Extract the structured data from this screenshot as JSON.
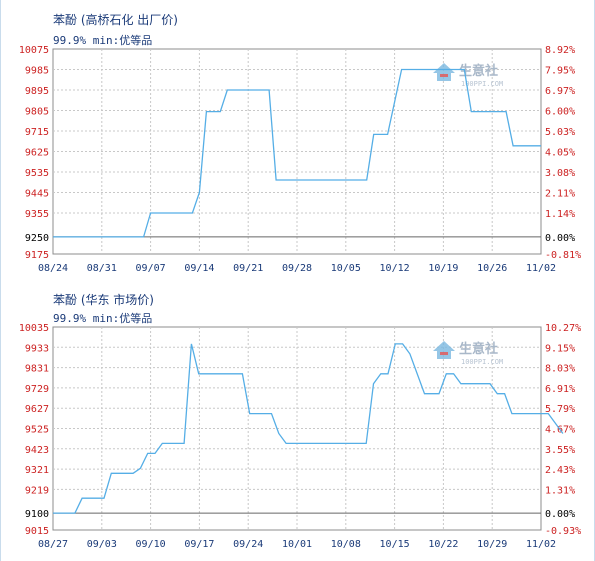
{
  "colors": {
    "line": "#55aee6",
    "grid": "#c8c8c8",
    "axis": "#8c8c8c",
    "left_label": "#cc2222",
    "right_label": "#cc2222",
    "zero_label": "#000000",
    "date_label": "#1a3a78",
    "title": "#1a3a78"
  },
  "watermark": {
    "text": "生意社",
    "subtext": "100PPI.COM",
    "icon": "house-logo-icon"
  },
  "chart_data": [
    {
      "type": "line",
      "title": "苯酚 (高桥石化 出厂价)",
      "subtitle": "99.9% min:优等品",
      "x_ticks": [
        "08/24",
        "08/31",
        "09/07",
        "09/14",
        "09/21",
        "09/28",
        "10/05",
        "10/12",
        "10/19",
        "10/26",
        "11/02"
      ],
      "x_range": [
        0,
        70
      ],
      "y_ticks": [
        9175,
        9250,
        9355,
        9445,
        9535,
        9625,
        9715,
        9805,
        9895,
        9985,
        10075
      ],
      "y_range": [
        9175,
        10075
      ],
      "y2_ticks": [
        "-0.81%",
        "0.00%",
        "1.14%",
        "2.11%",
        "3.08%",
        "4.05%",
        "5.03%",
        "6.00%",
        "6.97%",
        "7.95%",
        "8.92%"
      ],
      "grid": true,
      "series": [
        {
          "values": [
            [
              0,
              9250
            ],
            [
              13,
              9250
            ],
            [
              14,
              9355
            ],
            [
              20,
              9355
            ],
            [
              21,
              9445
            ],
            [
              22,
              9800
            ],
            [
              24,
              9800
            ],
            [
              25,
              9895
            ],
            [
              31,
              9895
            ],
            [
              32,
              9500
            ],
            [
              45,
              9500
            ],
            [
              46,
              9700
            ],
            [
              48,
              9700
            ],
            [
              50,
              9985
            ],
            [
              59,
              9985
            ],
            [
              60,
              9800
            ],
            [
              65,
              9800
            ],
            [
              66,
              9650
            ],
            [
              70,
              9650
            ]
          ]
        }
      ]
    },
    {
      "type": "line",
      "title": "苯酚 (华东 市场价)",
      "subtitle": "99.9% min:优等品",
      "x_ticks": [
        "08/27",
        "09/03",
        "09/10",
        "09/17",
        "09/24",
        "10/01",
        "10/08",
        "10/15",
        "10/22",
        "10/29",
        "11/02"
      ],
      "x_range": [
        0,
        67
      ],
      "y_ticks": [
        9015,
        9100,
        9219,
        9321,
        9423,
        9525,
        9627,
        9729,
        9831,
        9933,
        10035
      ],
      "y_range": [
        9015,
        10035
      ],
      "y2_ticks": [
        "-0.93%",
        "0.00%",
        "1.31%",
        "2.43%",
        "3.55%",
        "4.67%",
        "5.79%",
        "6.91%",
        "8.03%",
        "9.15%",
        "10.27%"
      ],
      "grid": true,
      "series": [
        {
          "values": [
            [
              0,
              9100
            ],
            [
              3,
              9100
            ],
            [
              4,
              9175
            ],
            [
              7,
              9175
            ],
            [
              8,
              9300
            ],
            [
              11,
              9300
            ],
            [
              12,
              9325
            ],
            [
              13,
              9400
            ],
            [
              14,
              9400
            ],
            [
              15,
              9450
            ],
            [
              18,
              9450
            ],
            [
              19,
              9950
            ],
            [
              20,
              9800
            ],
            [
              26,
              9800
            ],
            [
              27,
              9600
            ],
            [
              30,
              9600
            ],
            [
              31,
              9500
            ],
            [
              32,
              9450
            ],
            [
              43,
              9450
            ],
            [
              44,
              9750
            ],
            [
              45,
              9800
            ],
            [
              46,
              9800
            ],
            [
              47,
              9950
            ],
            [
              48,
              9950
            ],
            [
              49,
              9900
            ],
            [
              51,
              9700
            ],
            [
              53,
              9700
            ],
            [
              54,
              9800
            ],
            [
              55,
              9800
            ],
            [
              56,
              9750
            ],
            [
              60,
              9750
            ],
            [
              61,
              9700
            ],
            [
              62,
              9700
            ],
            [
              63,
              9600
            ],
            [
              68,
              9600
            ],
            [
              70,
              9500
            ]
          ]
        }
      ]
    }
  ]
}
